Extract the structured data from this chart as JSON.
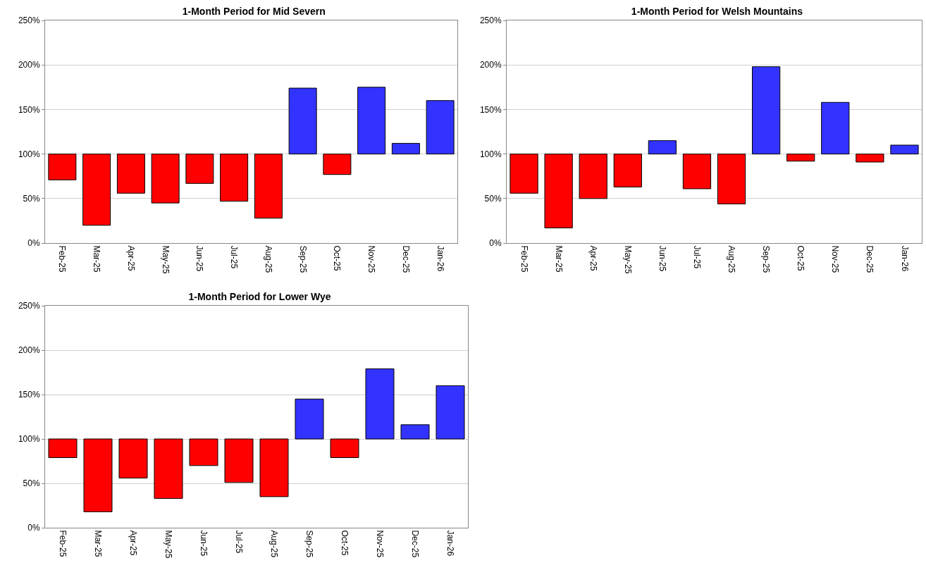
{
  "chart_data": [
    {
      "type": "bar",
      "title": "1-Month Period for Mid Severn",
      "categories": [
        "Feb-25",
        "Mar-25",
        "Apr-25",
        "May-25",
        "Jun-25",
        "Jul-25",
        "Aug-25",
        "Sep-25",
        "Oct-25",
        "Nov-25",
        "Dec-25",
        "Jan-26"
      ],
      "base": [
        100,
        100,
        100,
        100,
        100,
        100,
        100,
        100,
        100,
        100,
        100,
        100
      ],
      "values": [
        -29,
        -80,
        -44,
        -55,
        -33,
        -53,
        -72,
        74,
        -23,
        75,
        12,
        60
      ],
      "colors": [
        "#ff0000",
        "#ff0000",
        "#ff0000",
        "#ff0000",
        "#ff0000",
        "#ff0000",
        "#ff0000",
        "#3333ff",
        "#ff0000",
        "#3333ff",
        "#3333ff",
        "#3333ff"
      ],
      "ylim": [
        0,
        250
      ],
      "yticks": [
        {
          "value": 0,
          "label": "0%"
        },
        {
          "value": 50,
          "label": "50%"
        },
        {
          "value": 100,
          "label": "100%"
        },
        {
          "value": 150,
          "label": "150%"
        },
        {
          "value": 200,
          "label": "200%"
        },
        {
          "value": 250,
          "label": "250%"
        }
      ],
      "grid": "y"
    },
    {
      "type": "bar",
      "title": "1-Month Period for Welsh Mountains",
      "categories": [
        "Feb-25",
        "Mar-25",
        "Apr-25",
        "May-25",
        "Jun-25",
        "Jul-25",
        "Aug-25",
        "Sep-25",
        "Oct-25",
        "Nov-25",
        "Dec-25",
        "Jan-26"
      ],
      "base": [
        100,
        100,
        100,
        100,
        100,
        100,
        100,
        100,
        100,
        100,
        100,
        100
      ],
      "values": [
        -44,
        -83,
        -50,
        -37,
        15,
        -39,
        -56,
        98,
        -8,
        58,
        -9,
        10
      ],
      "colors": [
        "#ff0000",
        "#ff0000",
        "#ff0000",
        "#ff0000",
        "#3333ff",
        "#ff0000",
        "#ff0000",
        "#3333ff",
        "#ff0000",
        "#3333ff",
        "#ff0000",
        "#3333ff"
      ],
      "ylim": [
        0,
        250
      ],
      "yticks": [
        {
          "value": 0,
          "label": "0%"
        },
        {
          "value": 50,
          "label": "50%"
        },
        {
          "value": 100,
          "label": "100%"
        },
        {
          "value": 150,
          "label": "150%"
        },
        {
          "value": 200,
          "label": "200%"
        },
        {
          "value": 250,
          "label": "250%"
        }
      ],
      "grid": "y"
    },
    {
      "type": "bar",
      "title": "1-Month Period for Lower Wye",
      "categories": [
        "Feb-25",
        "Mar-25",
        "Apr-25",
        "May-25",
        "Jun-25",
        "Jul-25",
        "Aug-25",
        "Sep-25",
        "Oct-25",
        "Nov-25",
        "Dec-25",
        "Jan-26"
      ],
      "base": [
        100,
        100,
        100,
        100,
        100,
        100,
        100,
        100,
        100,
        100,
        100,
        100
      ],
      "values": [
        -21,
        -82,
        -44,
        -67,
        -30,
        -49,
        -65,
        45,
        -21,
        79,
        16,
        60
      ],
      "colors": [
        "#ff0000",
        "#ff0000",
        "#ff0000",
        "#ff0000",
        "#ff0000",
        "#ff0000",
        "#ff0000",
        "#3333ff",
        "#ff0000",
        "#3333ff",
        "#3333ff",
        "#3333ff"
      ],
      "ylim": [
        0,
        250
      ],
      "yticks": [
        {
          "value": 0,
          "label": "0%"
        },
        {
          "value": 50,
          "label": "50%"
        },
        {
          "value": 100,
          "label": "100%"
        },
        {
          "value": 150,
          "label": "150%"
        },
        {
          "value": 200,
          "label": "200%"
        },
        {
          "value": 250,
          "label": "250%"
        }
      ],
      "grid": "y"
    }
  ]
}
